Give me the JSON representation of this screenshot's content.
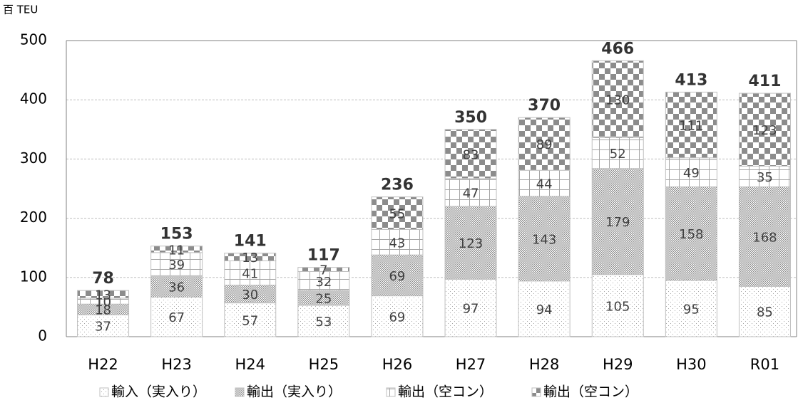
{
  "chart_data": {
    "type": "stacked_bar",
    "y_axis_label": "百 TEU",
    "categories": [
      "H22",
      "H23",
      "H24",
      "H25",
      "H26",
      "H27",
      "H28",
      "H29",
      "H30",
      "R01"
    ],
    "series": [
      {
        "name": "輸入（実入り）",
        "color": "#a6a6a6",
        "pattern": "dots",
        "values": [
          37,
          67,
          57,
          53,
          69,
          97,
          94,
          105,
          95,
          85
        ]
      },
      {
        "name": "輸出（実入り）",
        "color": "#8c8c8c",
        "pattern": "dense",
        "values": [
          18,
          36,
          30,
          25,
          69,
          123,
          143,
          179,
          158,
          168
        ]
      },
      {
        "name": "輸出（空コン）",
        "color": "#a6a6a6",
        "pattern": "grid",
        "values": [
          10,
          39,
          41,
          32,
          43,
          47,
          44,
          52,
          49,
          35
        ]
      },
      {
        "name": "輸出（空コン）",
        "color": "#8c8c8c",
        "pattern": "checker",
        "values": [
          13,
          11,
          13,
          7,
          55,
          83,
          89,
          130,
          111,
          123
        ]
      }
    ],
    "totals": [
      78,
      153,
      141,
      117,
      236,
      350,
      370,
      466,
      413,
      411
    ],
    "ylim": [
      0,
      500
    ],
    "yticks": [
      0,
      100,
      200,
      300,
      400,
      500
    ],
    "grid": true,
    "legend": "bottom"
  }
}
